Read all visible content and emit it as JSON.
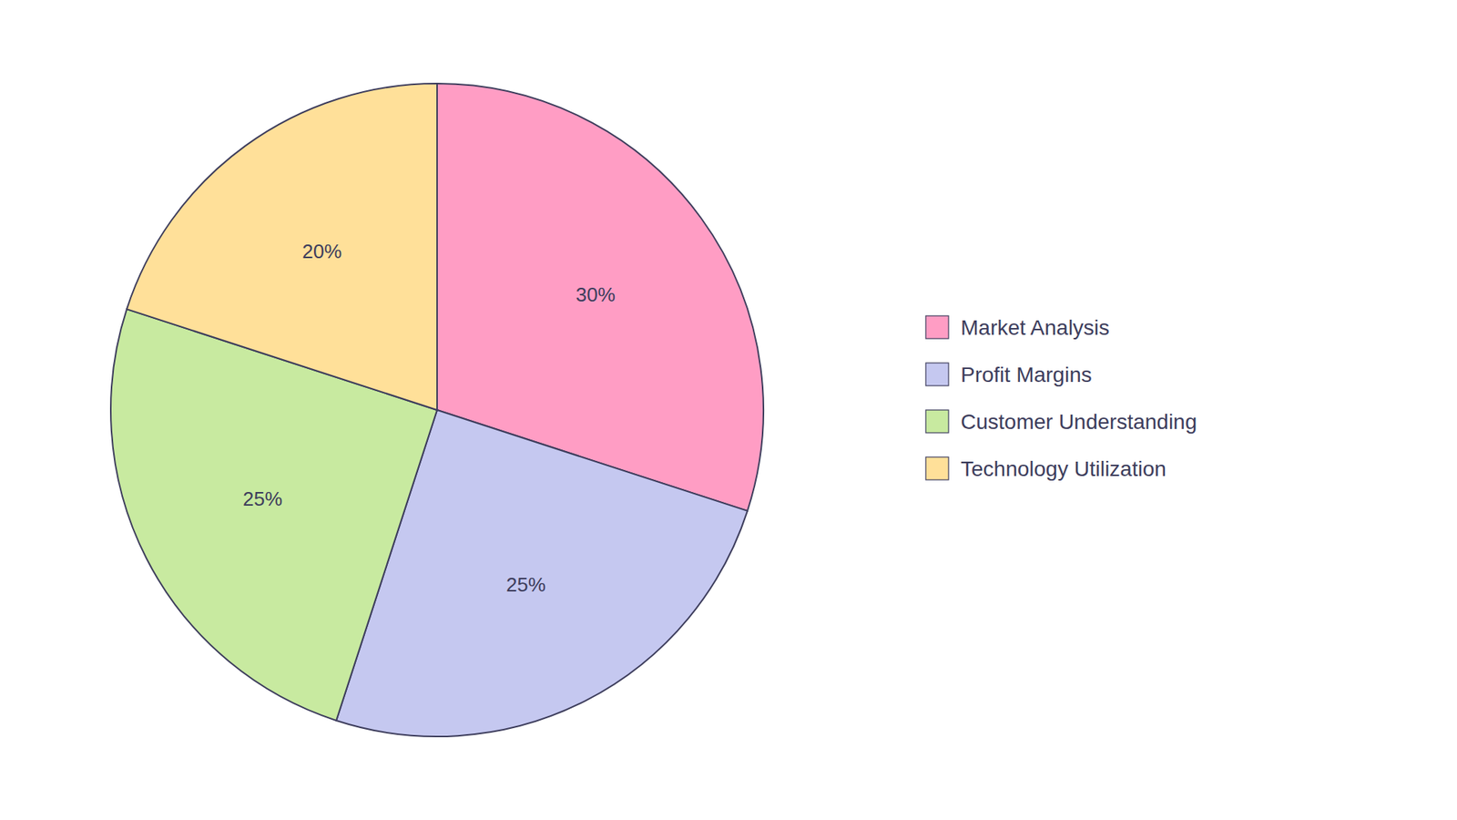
{
  "chart_data": {
    "type": "pie",
    "categories": [
      "Market Analysis",
      "Profit Margins",
      "Customer Understanding",
      "Technology Utilization"
    ],
    "values": [
      30,
      25,
      25,
      20
    ],
    "value_labels": [
      "30%",
      "25%",
      "25%",
      "20%"
    ],
    "colors": [
      "#FF9DC4",
      "#C5C8F0",
      "#C8EAA0",
      "#FFE099"
    ],
    "data_labels": true,
    "legend": "right"
  }
}
